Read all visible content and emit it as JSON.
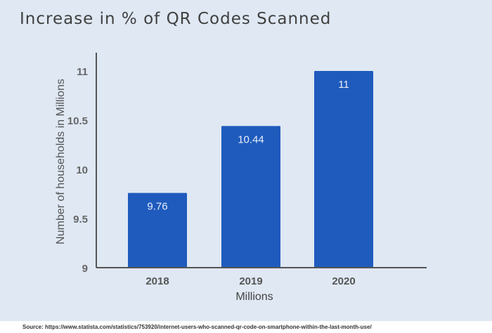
{
  "chart_data": {
    "type": "bar",
    "title": "Increase in % of QR Codes Scanned",
    "xlabel": "Millions",
    "ylabel": "Number of households in Millions",
    "categories": [
      "2018",
      "2019",
      "2020"
    ],
    "values": [
      9.76,
      10.44,
      11
    ],
    "data_labels": [
      "9.76",
      "10.44",
      "11"
    ],
    "ylim": [
      9,
      11.1
    ],
    "yticks": [
      9,
      9.5,
      10,
      10.5,
      11
    ],
    "ytick_labels": [
      "9",
      "9.5",
      "10",
      "10.5",
      "11"
    ],
    "bar_color": "#1f5bbd",
    "grid": false,
    "source": "Source: https://www.statista.com/statistics/753920/internet-users-who-scanned-qr-code-on-smartphone-within-the-last-month-use/"
  }
}
